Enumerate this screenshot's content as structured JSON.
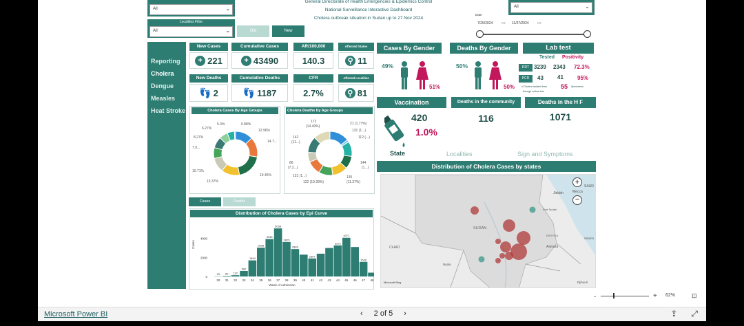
{
  "header": {
    "line1": "General Directorate of Health Emergencies & Epidemics Control",
    "line2": "National Surveillance Interactive Dashboard",
    "line3": "Cholera outbreak situation in Sudan up to 27 Nov 2024"
  },
  "filters": {
    "top_left_value": "All",
    "localities_label": "Localities Filter",
    "localities_value": "All",
    "top_right_value": "All",
    "date_label": "Date",
    "date_start": "7/25/2024",
    "date_end": "11/27/2024",
    "old_button": "Old",
    "new_button": "New"
  },
  "nav": [
    "Reporting",
    "Cholera",
    "Dengue",
    "Measles",
    "Heat Stroke"
  ],
  "kpis": {
    "new_cases_label": "New Cases",
    "new_cases_value": "221",
    "cum_cases_label": "Cumulative Cases",
    "cum_cases_value": "43490",
    "ar_label": "AR/100,000",
    "ar_value": "140.3",
    "aff_states_label": "Affected States",
    "aff_states_value": "11",
    "new_deaths_label": "New Deaths",
    "new_deaths_value": "2",
    "cum_deaths_label": "Cumulative Deaths",
    "cum_deaths_value": "1187",
    "cfr_label": "CFR",
    "cfr_value": "2.7%",
    "aff_loc_label": "Affected Localities",
    "aff_loc_value": "81"
  },
  "gender": {
    "cases_title": "Cases By Gender",
    "cases_male": "49%",
    "cases_female": "51%",
    "deaths_title": "Deaths By Gender",
    "deaths_male": "50%",
    "deaths_female": "50%"
  },
  "lab": {
    "title": "Lab test",
    "col_tested": "Tested",
    "col_positivity": "Positivity",
    "rdt_label": "RDT",
    "rdt_tested": "3239",
    "rdt_pos": "2343",
    "rdt_rate": "72.3%",
    "pcr_label": "PCR",
    "pcr_tested": "43",
    "pcr_pos": "41",
    "pcr_rate": "95%",
    "isolated_text": "V.Cholera isolated from",
    "isolated_count": "55",
    "isolated_unit": "Specimens",
    "isolated_text2": "through culture test"
  },
  "vaccination": {
    "title": "Vaccination",
    "value": "420",
    "percent": "1.0%"
  },
  "deaths_community": {
    "title": "Deaths in the community",
    "value": "116"
  },
  "deaths_hf": {
    "title": "Deaths in the H F",
    "value": "1071"
  },
  "age_cases": {
    "title": "Cholera Cases By Age Groups",
    "labels": [
      "5.3%",
      "0.88%",
      "6.27%",
      "12.96%",
      "8.27%",
      "14.7...",
      "7.9...",
      "10.71%",
      "13.37%",
      "19.46%"
    ]
  },
  "age_deaths": {
    "title": "Cholera Deaths by Age Groups",
    "labels": [
      "172",
      "(14.49%)",
      "21 (1.77%)",
      "131 (1...)",
      "142",
      "(11...)",
      "112 (...)",
      "86",
      "(7.2...)",
      "144",
      "(1...)",
      "121 (1...)",
      "122 (10.28%)",
      "135",
      "(11.37%)"
    ]
  },
  "tabs": {
    "state": "State",
    "localities": "Localities",
    "signs": "Sign and Symptoms"
  },
  "map": {
    "title": "Distribution of Cholera Cases by states",
    "labels": [
      "Jiddah",
      "Mecca",
      "Port Sudan",
      "SUDAN",
      "ERITREA",
      "Asmara",
      "CHAD",
      "Nyala",
      "Sana'a",
      "Djibouti",
      "SAUD"
    ],
    "attribution": "Microsoft Bing"
  },
  "epi_toggle": {
    "cases": "Cases",
    "deaths": "Deaths"
  },
  "epi_chart": {
    "title": "Distribution of Cholera Cases by Epi Curve",
    "y_axis_label": "Cases",
    "x_axis_label": "Week of Admission"
  },
  "chart_data": {
    "type": "bar",
    "title": "Distribution of Cholera Cases by Epi Curve",
    "xlabel": "Week of Admission",
    "ylabel": "Cases",
    "categories": [
      "30",
      "31",
      "32",
      "33",
      "34",
      "35",
      "36",
      "37",
      "38",
      "39",
      "40",
      "41",
      "42",
      "43",
      "44",
      "45",
      "46",
      "47",
      "48"
    ],
    "values": [
      23,
      62,
      132,
      582,
      1694,
      3035,
      3936,
      5058,
      3625,
      2883,
      2300,
      1897,
      2400,
      3000,
      3272,
      4071,
      3100,
      1536,
      400
    ],
    "labels_shown": [
      "23",
      "62",
      "132",
      "582",
      "1694",
      "3035",
      "3936",
      "5058",
      "3625",
      "2883",
      "",
      "1897",
      "",
      "",
      "3272",
      "4071",
      "",
      "1536",
      ""
    ],
    "yticks": [
      0,
      2000,
      4000
    ],
    "ylim": [
      0,
      5500
    ]
  },
  "footer": {
    "brand": "Microsoft Power BI",
    "page": "2 of 5",
    "zoom": "62%"
  },
  "colors": {
    "accent": "#2e7d73",
    "female": "#c2185b",
    "male": "#2e7d73",
    "bubble": "#b03a3a"
  }
}
